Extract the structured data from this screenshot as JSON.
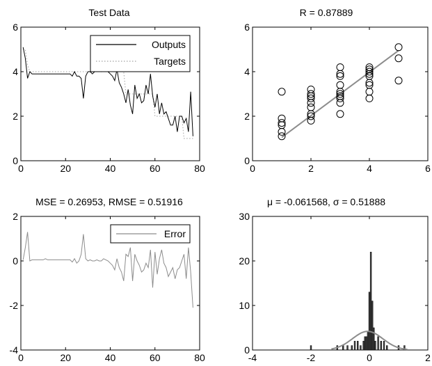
{
  "chart_data": [
    {
      "type": "line",
      "title": "Test Data",
      "xlim": [
        0,
        80
      ],
      "ylim": [
        0,
        6
      ],
      "xticks": [
        0,
        20,
        40,
        60,
        80
      ],
      "yticks": [
        0,
        2,
        4,
        6
      ],
      "legend": "top-right",
      "grid": false,
      "series": [
        {
          "name": "Outputs",
          "color": "#000000",
          "dash": "solid",
          "x": [
            1,
            2,
            3,
            4,
            5,
            6,
            7,
            8,
            9,
            10,
            11,
            12,
            13,
            14,
            15,
            16,
            17,
            18,
            19,
            20,
            21,
            22,
            23,
            24,
            25,
            26,
            27,
            28,
            29,
            30,
            31,
            32,
            33,
            34,
            35,
            36,
            37,
            38,
            39,
            40,
            41,
            42,
            43,
            44,
            45,
            46,
            47,
            48,
            49,
            50,
            51,
            52,
            53,
            54,
            55,
            56,
            57,
            58,
            59,
            60,
            61,
            62,
            63,
            64,
            65,
            66,
            67,
            68,
            69,
            70,
            71,
            72,
            73,
            74,
            75,
            76,
            77
          ],
          "y": [
            5.1,
            4.6,
            3.7,
            4.0,
            3.9,
            3.9,
            3.9,
            3.9,
            3.9,
            3.9,
            3.9,
            3.9,
            3.9,
            3.9,
            3.9,
            3.9,
            3.9,
            3.9,
            3.9,
            3.9,
            3.9,
            3.9,
            3.8,
            4.0,
            3.8,
            3.8,
            3.7,
            2.8,
            3.8,
            4.0,
            4.0,
            3.9,
            4.0,
            4.0,
            4.1,
            4.0,
            4.1,
            4.1,
            4.0,
            3.9,
            3.8,
            3.6,
            4.1,
            3.5,
            3.3,
            3.0,
            2.6,
            3.2,
            2.5,
            2.1,
            3.4,
            2.8,
            3.0,
            2.6,
            2.7,
            3.4,
            3.0,
            3.9,
            2.9,
            2.4,
            3.0,
            2.1,
            2.6,
            2.1,
            2.2,
            1.9,
            1.6,
            1.6,
            2.0,
            1.3,
            2.0,
            2.0,
            1.7,
            1.9,
            1.3,
            3.1,
            1.1
          ]
        },
        {
          "name": "Targets",
          "color": "#a0a0a0",
          "dash": "dotted",
          "x": [
            1,
            2,
            3,
            4,
            5,
            6,
            7,
            8,
            9,
            10,
            11,
            12,
            13,
            14,
            15,
            16,
            17,
            18,
            19,
            20,
            21,
            22,
            23,
            24,
            25,
            26,
            27,
            28,
            29,
            30,
            31,
            32,
            33,
            34,
            35,
            36,
            37,
            38,
            39,
            40,
            41,
            42,
            43,
            44,
            45,
            46,
            47,
            48,
            49,
            50,
            51,
            52,
            53,
            54,
            55,
            56,
            57,
            58,
            59,
            60,
            61,
            62,
            63,
            64,
            65,
            66,
            67,
            68,
            69,
            70,
            71,
            72,
            73,
            74,
            75,
            76,
            77
          ],
          "y": [
            5.0,
            5.0,
            4.3,
            4.0,
            4.0,
            4.0,
            4.0,
            4.0,
            4.0,
            4.0,
            4.0,
            4.0,
            4.0,
            4.0,
            4.0,
            4.0,
            4.0,
            4.0,
            4.0,
            4.0,
            4.0,
            4.0,
            4.0,
            4.0,
            4.0,
            4.0,
            4.0,
            4.0,
            4.0,
            4.0,
            4.0,
            4.0,
            4.0,
            4.0,
            4.0,
            4.0,
            4.0,
            4.0,
            4.0,
            4.0,
            4.0,
            4.0,
            4.0,
            4.0,
            4.0,
            4.0,
            3.0,
            3.0,
            3.0,
            3.0,
            3.0,
            3.0,
            3.0,
            3.0,
            3.0,
            3.0,
            3.0,
            3.0,
            3.0,
            2.0,
            2.0,
            2.0,
            2.0,
            2.0,
            2.0,
            2.0,
            2.0,
            2.0,
            2.0,
            2.0,
            2.0,
            2.0,
            1.0,
            1.0,
            1.0,
            1.0,
            1.0
          ]
        }
      ]
    },
    {
      "type": "scatter",
      "title": "R = 0.87889",
      "xlim": [
        0,
        6
      ],
      "ylim": [
        0,
        6
      ],
      "xticks": [
        0,
        2,
        4,
        6
      ],
      "yticks": [
        0,
        2,
        4,
        6
      ],
      "grid": false,
      "points": [
        [
          1,
          1.1
        ],
        [
          1,
          1.3
        ],
        [
          1,
          1.6
        ],
        [
          1,
          1.7
        ],
        [
          1,
          1.9
        ],
        [
          1,
          3.1
        ],
        [
          2,
          1.8
        ],
        [
          2,
          2.0
        ],
        [
          2,
          2.1
        ],
        [
          2,
          2.4
        ],
        [
          2,
          2.6
        ],
        [
          2,
          2.8
        ],
        [
          2,
          2.9
        ],
        [
          2,
          3.0
        ],
        [
          2,
          3.2
        ],
        [
          3,
          2.1
        ],
        [
          3,
          2.6
        ],
        [
          3,
          2.8
        ],
        [
          3,
          2.9
        ],
        [
          3,
          3.0
        ],
        [
          3,
          3.1
        ],
        [
          3,
          3.4
        ],
        [
          3,
          3.8
        ],
        [
          3,
          3.9
        ],
        [
          3,
          4.2
        ],
        [
          4,
          2.8
        ],
        [
          4,
          3.1
        ],
        [
          4,
          3.4
        ],
        [
          4,
          3.5
        ],
        [
          4,
          3.8
        ],
        [
          4,
          3.9
        ],
        [
          4,
          4.0
        ],
        [
          4,
          4.1
        ],
        [
          4,
          4.2
        ],
        [
          5,
          3.6
        ],
        [
          5,
          4.6
        ],
        [
          5,
          5.1
        ]
      ],
      "fit_line": {
        "x": [
          1,
          5
        ],
        "y": [
          1.05,
          4.95
        ],
        "color": "#8c8c8c"
      }
    },
    {
      "type": "line",
      "title": "MSE = 0.26953, RMSE = 0.51916",
      "xlim": [
        0,
        80
      ],
      "ylim": [
        -4,
        2
      ],
      "xticks": [
        0,
        20,
        40,
        60,
        80
      ],
      "yticks": [
        -4,
        -2,
        0,
        2
      ],
      "legend": "top-right",
      "grid": false,
      "series": [
        {
          "name": "Error",
          "color": "#8c8c8c",
          "dash": "solid",
          "x": [
            1,
            2,
            3,
            4,
            5,
            6,
            7,
            8,
            9,
            10,
            11,
            12,
            13,
            14,
            15,
            16,
            17,
            18,
            19,
            20,
            21,
            22,
            23,
            24,
            25,
            26,
            27,
            28,
            29,
            30,
            31,
            32,
            33,
            34,
            35,
            36,
            37,
            38,
            39,
            40,
            41,
            42,
            43,
            44,
            45,
            46,
            47,
            48,
            49,
            50,
            51,
            52,
            53,
            54,
            55,
            56,
            57,
            58,
            59,
            60,
            61,
            62,
            63,
            64,
            65,
            66,
            67,
            68,
            69,
            70,
            71,
            72,
            73,
            74,
            75,
            76,
            77
          ],
          "y": [
            0.05,
            0.6,
            1.3,
            0.0,
            0.05,
            0.05,
            0.05,
            0.05,
            0.05,
            0.05,
            0.1,
            0.05,
            0.05,
            0.05,
            0.05,
            0.05,
            0.05,
            0.05,
            0.05,
            0.05,
            0.05,
            0.05,
            -0.05,
            0.1,
            -0.1,
            0.0,
            0.3,
            1.2,
            0.1,
            0.0,
            0.05,
            0.0,
            0.0,
            0.05,
            0.0,
            0.0,
            0.1,
            0.05,
            0.0,
            -0.1,
            -0.2,
            -0.4,
            0.1,
            -0.3,
            -0.5,
            -0.9,
            0.3,
            0.2,
            0.6,
            -0.9,
            0.3,
            0.0,
            -0.2,
            -0.5,
            -0.4,
            -0.1,
            -0.3,
            0.5,
            -1.2,
            0.4,
            -0.6,
            0.1,
            0.5,
            -0.1,
            -0.3,
            -0.7,
            -0.5,
            -0.3,
            -0.8,
            -0.4,
            -0.3,
            0.0,
            0.3,
            -0.8,
            0.6,
            -0.5,
            -2.1
          ]
        }
      ]
    },
    {
      "type": "bar",
      "title": "μ = -0.061568, σ = 0.51888",
      "xlim": [
        -4,
        2
      ],
      "ylim": [
        0,
        30
      ],
      "xticks": [
        -4,
        -2,
        0,
        2
      ],
      "yticks": [
        0,
        10,
        20,
        30
      ],
      "grid": false,
      "bins": [
        [
          -2.0,
          1
        ],
        [
          -1.1,
          1
        ],
        [
          -0.9,
          1
        ],
        [
          -0.75,
          1
        ],
        [
          -0.6,
          1
        ],
        [
          -0.5,
          2
        ],
        [
          -0.4,
          2
        ],
        [
          -0.3,
          1
        ],
        [
          -0.2,
          2
        ],
        [
          -0.15,
          3
        ],
        [
          -0.1,
          3
        ],
        [
          -0.05,
          4
        ],
        [
          0.0,
          13
        ],
        [
          0.05,
          22
        ],
        [
          0.1,
          11
        ],
        [
          0.15,
          5
        ],
        [
          0.2,
          2
        ],
        [
          0.3,
          3
        ],
        [
          0.4,
          2
        ],
        [
          0.5,
          2
        ],
        [
          0.6,
          1
        ],
        [
          1.0,
          1
        ],
        [
          1.2,
          1
        ]
      ],
      "bar_color": "#404040",
      "fit_curve": {
        "type": "normal",
        "mu": -0.061568,
        "sigma": 0.51888,
        "range": [
          -1.3,
          1.3
        ],
        "color": "#8c8c8c"
      }
    }
  ]
}
